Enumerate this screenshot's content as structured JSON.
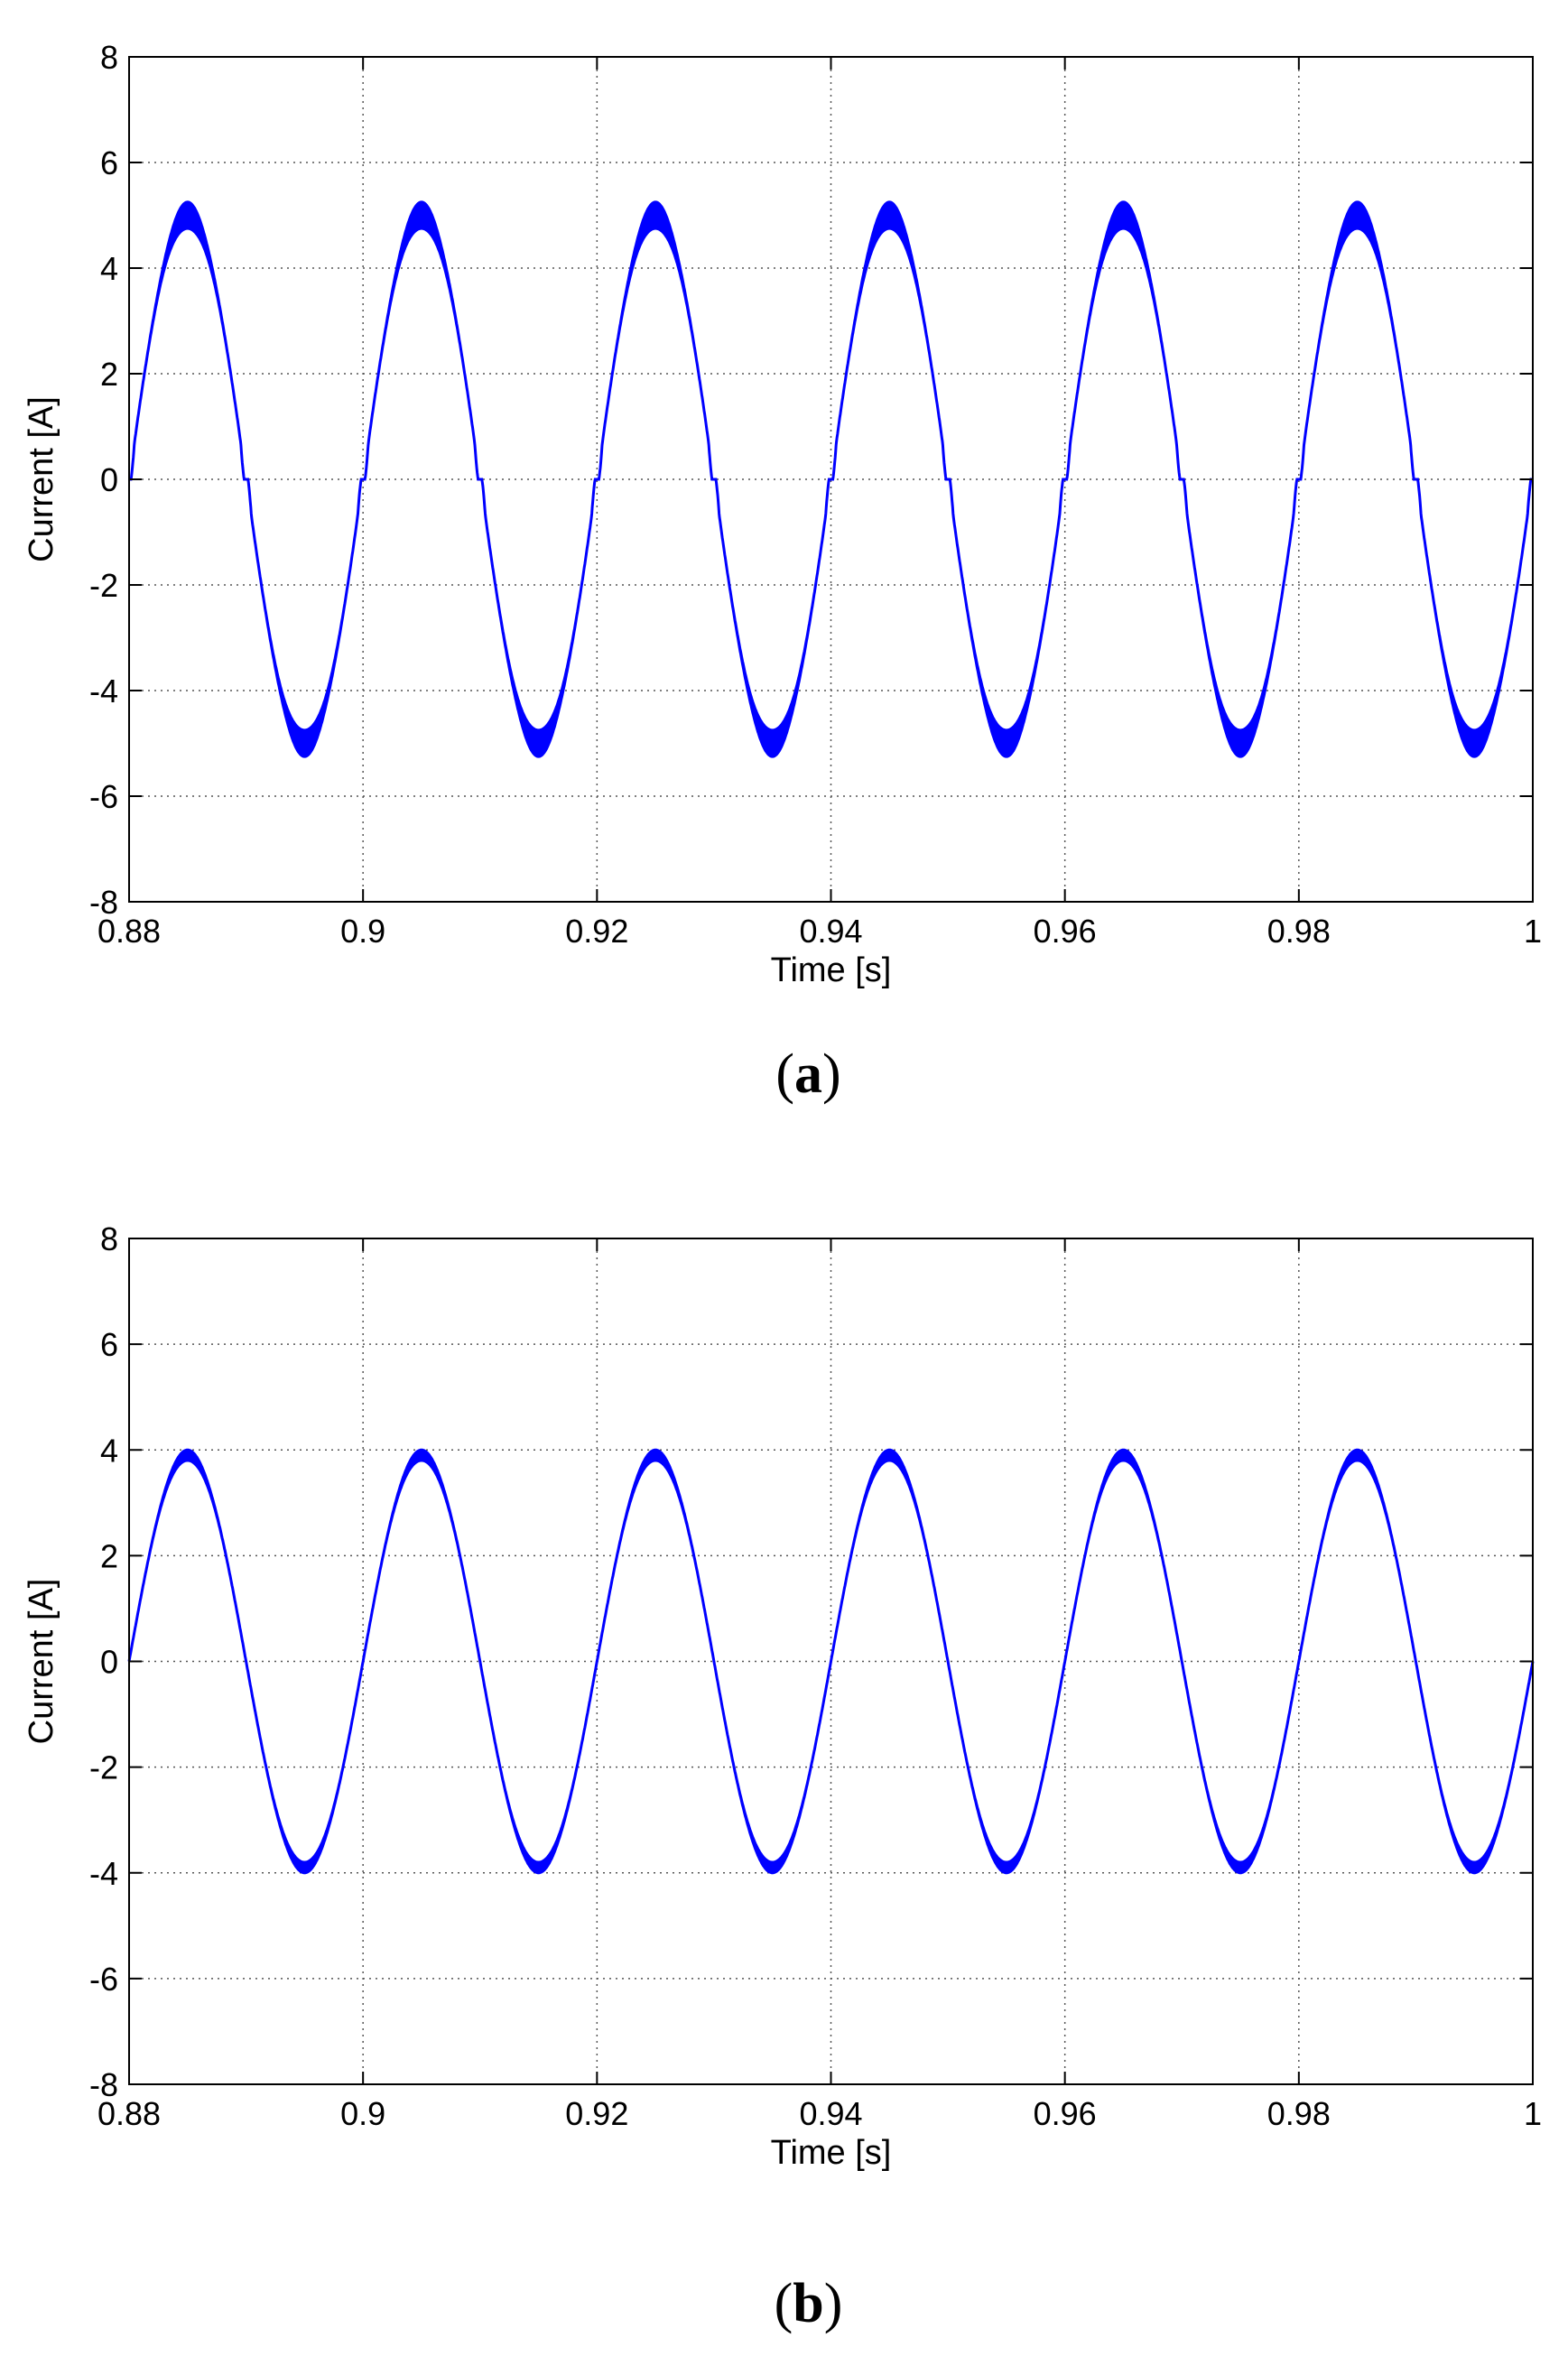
{
  "chart_data": [
    {
      "type": "line",
      "panel_label": "a",
      "xlabel": "Time [s]",
      "ylabel": "Current [A]",
      "xlim": [
        0.88,
        1.0
      ],
      "ylim": [
        -8,
        8
      ],
      "xticks": [
        0.88,
        0.9,
        0.92,
        0.94,
        0.96,
        0.98,
        1
      ],
      "xtick_labels": [
        "0.88",
        "0.9",
        "0.92",
        "0.94",
        "0.96",
        "0.98",
        "1"
      ],
      "yticks": [
        -8,
        -6,
        -4,
        -2,
        0,
        2,
        4,
        6,
        8
      ],
      "ytick_labels": [
        "-8",
        "-6",
        "-4",
        "-2",
        "0",
        "2",
        "4",
        "6",
        "8"
      ],
      "grid": "dotted",
      "line_color": "#0000ff",
      "series": [
        {
          "frequency_hz": 50,
          "amplitude_a": 5.0,
          "peak_band_width_a": 0.5,
          "zero_crossing_dead_zone_a": 0.35,
          "sample_points": [
            {
              "x": 0.88,
              "y": 0
            },
            {
              "x": 0.885,
              "y": 5.0
            },
            {
              "x": 0.89,
              "y": 0
            },
            {
              "x": 0.895,
              "y": -5.0
            },
            {
              "x": 0.9,
              "y": 0
            },
            {
              "x": 0.905,
              "y": 5.0
            },
            {
              "x": 0.915,
              "y": -5.0
            },
            {
              "x": 0.925,
              "y": 5.0
            },
            {
              "x": 0.935,
              "y": -5.0
            },
            {
              "x": 0.945,
              "y": 5.0
            },
            {
              "x": 0.955,
              "y": -5.0
            },
            {
              "x": 0.965,
              "y": 5.0
            },
            {
              "x": 0.975,
              "y": -5.0
            },
            {
              "x": 0.985,
              "y": 5.0
            },
            {
              "x": 0.995,
              "y": -5.0
            },
            {
              "x": 1.0,
              "y": 0
            }
          ]
        }
      ]
    },
    {
      "type": "line",
      "panel_label": "b",
      "xlabel": "Time [s]",
      "ylabel": "Current [A]",
      "xlim": [
        0.88,
        1.0
      ],
      "ylim": [
        -8,
        8
      ],
      "xticks": [
        0.88,
        0.9,
        0.92,
        0.94,
        0.96,
        0.98,
        1
      ],
      "xtick_labels": [
        "0.88",
        "0.9",
        "0.92",
        "0.94",
        "0.96",
        "0.98",
        "1"
      ],
      "yticks": [
        -8,
        -6,
        -4,
        -2,
        0,
        2,
        4,
        6,
        8
      ],
      "ytick_labels": [
        "-8",
        "-6",
        "-4",
        "-2",
        "0",
        "2",
        "4",
        "6",
        "8"
      ],
      "grid": "dotted",
      "line_color": "#0000ff",
      "series": [
        {
          "frequency_hz": 50,
          "amplitude_a": 3.9,
          "peak_band_width_a": 0.2,
          "zero_crossing_dead_zone_a": 0,
          "sample_points": [
            {
              "x": 0.88,
              "y": 0
            },
            {
              "x": 0.885,
              "y": 3.9
            },
            {
              "x": 0.895,
              "y": -3.9
            },
            {
              "x": 0.905,
              "y": 3.9
            },
            {
              "x": 0.915,
              "y": -3.9
            },
            {
              "x": 0.925,
              "y": 3.9
            },
            {
              "x": 0.935,
              "y": -3.9
            },
            {
              "x": 0.945,
              "y": 3.9
            },
            {
              "x": 0.955,
              "y": -3.9
            },
            {
              "x": 0.965,
              "y": 3.9
            },
            {
              "x": 0.975,
              "y": -3.9
            },
            {
              "x": 0.985,
              "y": 3.9
            },
            {
              "x": 0.995,
              "y": -3.9
            },
            {
              "x": 1.0,
              "y": 0
            }
          ]
        }
      ]
    }
  ]
}
